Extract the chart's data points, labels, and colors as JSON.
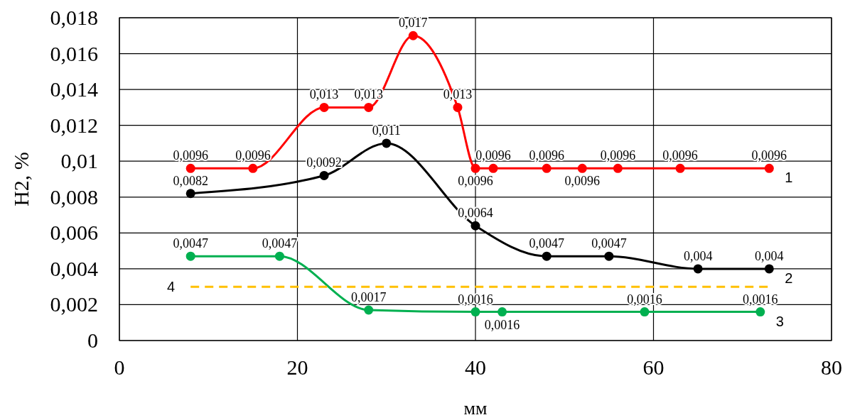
{
  "chart_data": {
    "type": "line",
    "xlabel": "мм",
    "ylabel": "H2, %",
    "xlim": [
      0,
      80
    ],
    "xticks": [
      0,
      20,
      40,
      60,
      80
    ],
    "ylim": [
      0,
      0.018
    ],
    "yticks": [
      {
        "value": 0,
        "label": "0"
      },
      {
        "value": 0.002,
        "label": "0,002"
      },
      {
        "value": 0.004,
        "label": "0,004"
      },
      {
        "value": 0.006,
        "label": "0,006"
      },
      {
        "value": 0.008,
        "label": "0,008"
      },
      {
        "value": 0.01,
        "label": "0,01"
      },
      {
        "value": 0.012,
        "label": "0,012"
      },
      {
        "value": 0.014,
        "label": "0,014"
      },
      {
        "value": 0.016,
        "label": "0,016"
      },
      {
        "value": 0.018,
        "label": "0,018"
      }
    ],
    "grid": true,
    "marker": "circle",
    "series": [
      {
        "name": "1",
        "color": "#ff0000",
        "x": [
          8,
          15,
          23,
          28,
          33,
          38,
          40,
          42,
          48,
          52,
          56,
          63,
          73
        ],
        "values": [
          0.0096,
          0.0096,
          0.013,
          0.013,
          0.017,
          0.013,
          0.0096,
          0.0096,
          0.0096,
          0.0096,
          0.0096,
          0.0096,
          0.0096
        ],
        "value_labels": [
          "0,0096",
          "0,0096",
          "0,013",
          "0,013",
          "0,017",
          "0,013",
          "0,0096",
          "0,0096",
          "0,0096",
          "0,0096",
          "0,0096",
          "0,0096",
          "0,0096"
        ]
      },
      {
        "name": "2",
        "color": "#000000",
        "x": [
          8,
          23,
          30,
          40,
          48,
          55,
          65,
          73
        ],
        "values": [
          0.0082,
          0.0092,
          0.011,
          0.0064,
          0.0047,
          0.0047,
          0.004,
          0.004
        ],
        "value_labels": [
          "0,0082",
          "0,0092",
          "0,011",
          "0,0064",
          "0,0047",
          "0,0047",
          "0,004",
          "0,004"
        ]
      },
      {
        "name": "3",
        "color": "#00b050",
        "x": [
          8,
          18,
          28,
          40,
          43,
          59,
          72
        ],
        "values": [
          0.0047,
          0.0047,
          0.0017,
          0.0016,
          0.0016,
          0.0016,
          0.0016
        ],
        "value_labels": [
          "0,0047",
          "0,0047",
          "0,0017",
          "0,0016",
          "0,0016",
          "0,0016",
          "0,0016"
        ]
      },
      {
        "name": "4",
        "color": "#ffc000",
        "x": [
          8,
          73
        ],
        "values": [
          0.003,
          0.003
        ],
        "marker": "none",
        "line_style": "dashed"
      }
    ]
  }
}
